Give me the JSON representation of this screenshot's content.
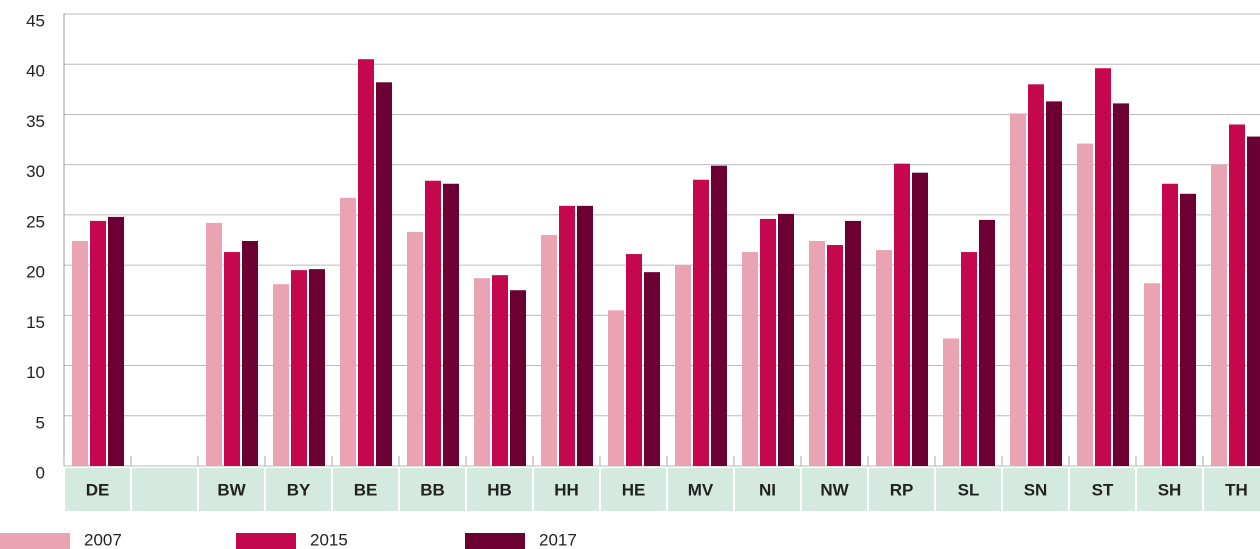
{
  "chart_data": {
    "type": "bar",
    "categories": [
      "DE",
      null,
      "BW",
      "BY",
      "BE",
      "BB",
      "HB",
      "HH",
      "HE",
      "MV",
      "NI",
      "NW",
      "RP",
      "SL",
      "SN",
      "ST",
      "SH",
      "TH"
    ],
    "series": [
      {
        "name": "2007",
        "color": "#eaa3b3",
        "values": [
          22.4,
          null,
          24.2,
          18.1,
          26.7,
          23.3,
          18.7,
          23.0,
          15.5,
          20.0,
          21.3,
          22.4,
          21.5,
          12.7,
          35.1,
          32.1,
          18.2,
          30.0
        ]
      },
      {
        "name": "2015",
        "color": "#c5084e",
        "values": [
          24.4,
          null,
          21.3,
          19.5,
          40.5,
          28.4,
          19.0,
          25.9,
          21.1,
          28.5,
          24.6,
          22.0,
          30.1,
          21.3,
          38.0,
          39.6,
          28.1,
          34.0
        ]
      },
      {
        "name": "2017",
        "color": "#6c0032",
        "values": [
          24.8,
          null,
          22.4,
          19.6,
          38.2,
          28.1,
          17.5,
          25.9,
          19.3,
          29.9,
          25.1,
          24.4,
          29.2,
          24.5,
          36.3,
          36.1,
          27.1,
          32.8
        ]
      }
    ],
    "ylim": [
      0,
      45
    ],
    "yticks": [
      0,
      5,
      10,
      15,
      20,
      25,
      30,
      35,
      40,
      45
    ],
    "grid": true,
    "legend": "bottom-left"
  }
}
